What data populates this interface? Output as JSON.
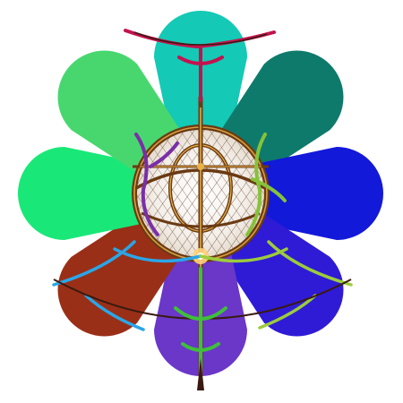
{
  "emblem": {
    "name": "flower-sigil",
    "background": "#ffffff",
    "petals": [
      {
        "name": "petal-top",
        "color": "#14c9b5"
      },
      {
        "name": "petal-top-right",
        "color": "#0e7a6c"
      },
      {
        "name": "petal-right",
        "color": "#1219d9"
      },
      {
        "name": "petal-bottom-right",
        "color": "#2f1bd6"
      },
      {
        "name": "petal-bottom",
        "color": "#6a37c9"
      },
      {
        "name": "petal-bottom-left",
        "color": "#9a2f17"
      },
      {
        "name": "petal-left",
        "color": "#19e878"
      },
      {
        "name": "petal-top-left",
        "color": "#48d76f"
      }
    ],
    "sigil": {
      "ring_color": "#6b3a12",
      "gold_color": "#e8b24a",
      "hatch_color": "#5a3a24",
      "branch_colors": {
        "top": "#c4124f",
        "left": "#7a2ea8",
        "right": "#86c23a",
        "bottom": "#3fbf3a",
        "lower_left": "#2aa6e8",
        "lower_right": "#9ccc3c"
      }
    }
  }
}
